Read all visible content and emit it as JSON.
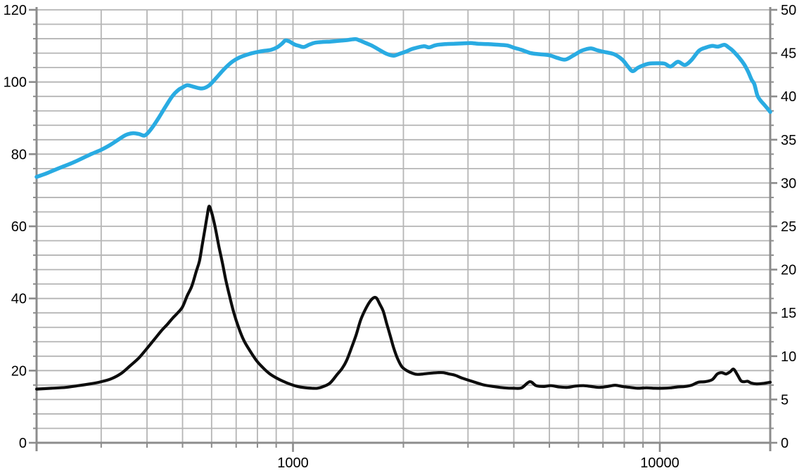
{
  "chart_data": {
    "type": "line",
    "title": "",
    "xlabel": "",
    "ylabel_left": "",
    "ylabel_right": "",
    "grid": true,
    "legend": "none",
    "x_axis": {
      "scale": "log",
      "min": 200,
      "max": 20000,
      "labeled_ticks": [
        1000,
        10000
      ],
      "gridline_freqs": [
        300,
        400,
        500,
        600,
        700,
        800,
        900,
        1000,
        2000,
        3000,
        4000,
        5000,
        6000,
        7000,
        8000,
        9000,
        10000
      ],
      "tick_freqs": [
        200,
        300,
        400,
        500,
        600,
        700,
        800,
        900,
        1000,
        2000,
        3000,
        4000,
        5000,
        6000,
        7000,
        8000,
        9000,
        10000,
        20000
      ]
    },
    "y_left": {
      "min": 0,
      "max": 120,
      "gridline_step": 4,
      "labeled_ticks": [
        0,
        20,
        40,
        60,
        80,
        100,
        120
      ]
    },
    "y_right": {
      "min": 0,
      "max": 50,
      "labeled_ticks": [
        0,
        5,
        10,
        15,
        20,
        25,
        30,
        35,
        40,
        45,
        50
      ]
    },
    "style": {
      "grid_color": "#b5b5b5",
      "frame_color": "#8c8c8c",
      "text_color": "#000000",
      "background": "#ffffff",
      "spl_color": "#29abe2",
      "impedance_color": "#0d0d0d"
    },
    "series": [
      {
        "name": "impedance",
        "axis": "right",
        "color": "#0d0d0d",
        "stroke_width": 4.2,
        "points": [
          [
            200,
            6.2
          ],
          [
            220,
            6.3
          ],
          [
            240,
            6.4
          ],
          [
            260,
            6.6
          ],
          [
            280,
            6.8
          ],
          [
            300,
            7.05
          ],
          [
            320,
            7.4
          ],
          [
            340,
            8.0
          ],
          [
            360,
            8.9
          ],
          [
            380,
            9.8
          ],
          [
            400,
            10.9
          ],
          [
            420,
            12.0
          ],
          [
            437,
            12.9
          ],
          [
            455,
            13.7
          ],
          [
            470,
            14.4
          ],
          [
            485,
            15.0
          ],
          [
            500,
            15.7
          ],
          [
            515,
            17.0
          ],
          [
            530,
            18.1
          ],
          [
            545,
            19.8
          ],
          [
            556,
            21.0
          ],
          [
            566,
            22.9
          ],
          [
            575,
            24.6
          ],
          [
            583,
            26.1
          ],
          [
            590,
            27.3
          ],
          [
            598,
            26.8
          ],
          [
            607,
            25.8
          ],
          [
            617,
            24.4
          ],
          [
            628,
            22.7
          ],
          [
            642,
            20.8
          ],
          [
            656,
            18.8
          ],
          [
            672,
            16.9
          ],
          [
            690,
            15.0
          ],
          [
            711,
            13.3
          ],
          [
            735,
            11.8
          ],
          [
            764,
            10.6
          ],
          [
            795,
            9.5
          ],
          [
            827,
            8.7
          ],
          [
            862,
            8.0
          ],
          [
            900,
            7.5
          ],
          [
            940,
            7.1
          ],
          [
            985,
            6.75
          ],
          [
            1030,
            6.5
          ],
          [
            1075,
            6.37
          ],
          [
            1125,
            6.3
          ],
          [
            1165,
            6.3
          ],
          [
            1210,
            6.5
          ],
          [
            1262,
            6.9
          ],
          [
            1320,
            7.9
          ],
          [
            1362,
            8.6
          ],
          [
            1400,
            9.5
          ],
          [
            1442,
            10.9
          ],
          [
            1485,
            12.4
          ],
          [
            1530,
            14.2
          ],
          [
            1575,
            15.4
          ],
          [
            1620,
            16.3
          ],
          [
            1660,
            16.75
          ],
          [
            1690,
            16.7
          ],
          [
            1725,
            16.0
          ],
          [
            1762,
            15.2
          ],
          [
            1800,
            13.8
          ],
          [
            1840,
            12.4
          ],
          [
            1880,
            11.0
          ],
          [
            1925,
            9.8
          ],
          [
            1980,
            8.8
          ],
          [
            2050,
            8.3
          ],
          [
            2125,
            8.0
          ],
          [
            2185,
            7.9
          ],
          [
            2265,
            7.95
          ],
          [
            2390,
            8.05
          ],
          [
            2480,
            8.1
          ],
          [
            2565,
            8.1
          ],
          [
            2665,
            7.95
          ],
          [
            2765,
            7.8
          ],
          [
            2900,
            7.45
          ],
          [
            3100,
            7.05
          ],
          [
            3300,
            6.7
          ],
          [
            3520,
            6.5
          ],
          [
            3760,
            6.35
          ],
          [
            4000,
            6.3
          ],
          [
            4200,
            6.35
          ],
          [
            4420,
            7.05
          ],
          [
            4600,
            6.6
          ],
          [
            4820,
            6.5
          ],
          [
            5050,
            6.6
          ],
          [
            5300,
            6.45
          ],
          [
            5600,
            6.4
          ],
          [
            5900,
            6.55
          ],
          [
            6200,
            6.6
          ],
          [
            6500,
            6.5
          ],
          [
            6850,
            6.4
          ],
          [
            7200,
            6.5
          ],
          [
            7550,
            6.65
          ],
          [
            7900,
            6.5
          ],
          [
            8300,
            6.4
          ],
          [
            8700,
            6.3
          ],
          [
            9200,
            6.35
          ],
          [
            9700,
            6.3
          ],
          [
            10200,
            6.3
          ],
          [
            10700,
            6.35
          ],
          [
            11200,
            6.45
          ],
          [
            11700,
            6.5
          ],
          [
            12200,
            6.65
          ],
          [
            12750,
            7.0
          ],
          [
            13300,
            7.05
          ],
          [
            13900,
            7.3
          ],
          [
            14350,
            7.95
          ],
          [
            14750,
            8.1
          ],
          [
            15150,
            7.95
          ],
          [
            15550,
            8.2
          ],
          [
            15900,
            8.5
          ],
          [
            16300,
            7.8
          ],
          [
            16650,
            7.15
          ],
          [
            17000,
            7.05
          ],
          [
            17350,
            7.1
          ],
          [
            17750,
            6.9
          ],
          [
            18300,
            6.8
          ],
          [
            19100,
            6.85
          ],
          [
            20000,
            7.0
          ]
        ]
      },
      {
        "name": "spl",
        "axis": "left",
        "color": "#29abe2",
        "stroke_width": 5.5,
        "points": [
          [
            200,
            73.7
          ],
          [
            212,
            74.6
          ],
          [
            225,
            75.7
          ],
          [
            238,
            76.7
          ],
          [
            252,
            77.7
          ],
          [
            267,
            78.9
          ],
          [
            283,
            80.1
          ],
          [
            300,
            81.2
          ],
          [
            318,
            82.6
          ],
          [
            335,
            84.1
          ],
          [
            350,
            85.3
          ],
          [
            365,
            85.8
          ],
          [
            380,
            85.6
          ],
          [
            395,
            85.2
          ],
          [
            412,
            87.2
          ],
          [
            430,
            90.0
          ],
          [
            450,
            93.3
          ],
          [
            470,
            96.2
          ],
          [
            487,
            97.8
          ],
          [
            500,
            98.5
          ],
          [
            515,
            99.1
          ],
          [
            535,
            98.7
          ],
          [
            565,
            98.2
          ],
          [
            590,
            99.0
          ],
          [
            615,
            100.9
          ],
          [
            640,
            102.9
          ],
          [
            660,
            104.3
          ],
          [
            685,
            105.7
          ],
          [
            715,
            106.8
          ],
          [
            750,
            107.6
          ],
          [
            790,
            108.2
          ],
          [
            830,
            108.6
          ],
          [
            870,
            108.9
          ],
          [
            905,
            109.6
          ],
          [
            935,
            110.7
          ],
          [
            953,
            111.5
          ],
          [
            975,
            111.3
          ],
          [
            1010,
            110.4
          ],
          [
            1040,
            110.0
          ],
          [
            1070,
            109.7
          ],
          [
            1110,
            110.4
          ],
          [
            1150,
            110.9
          ],
          [
            1200,
            111.1
          ],
          [
            1260,
            111.2
          ],
          [
            1330,
            111.4
          ],
          [
            1400,
            111.6
          ],
          [
            1480,
            111.9
          ],
          [
            1520,
            111.5
          ],
          [
            1570,
            110.9
          ],
          [
            1646,
            110.0
          ],
          [
            1720,
            108.9
          ],
          [
            1800,
            107.8
          ],
          [
            1880,
            107.3
          ],
          [
            1950,
            107.8
          ],
          [
            2030,
            108.4
          ],
          [
            2120,
            109.2
          ],
          [
            2270,
            109.9
          ],
          [
            2350,
            109.6
          ],
          [
            2450,
            110.2
          ],
          [
            2600,
            110.5
          ],
          [
            2750,
            110.6
          ],
          [
            2900,
            110.7
          ],
          [
            3050,
            110.8
          ],
          [
            3200,
            110.6
          ],
          [
            3400,
            110.5
          ],
          [
            3650,
            110.3
          ],
          [
            3850,
            110.1
          ],
          [
            4000,
            109.5
          ],
          [
            4200,
            108.9
          ],
          [
            4450,
            108.0
          ],
          [
            4700,
            107.7
          ],
          [
            5000,
            107.4
          ],
          [
            5250,
            106.7
          ],
          [
            5520,
            106.2
          ],
          [
            5800,
            107.3
          ],
          [
            6100,
            108.6
          ],
          [
            6300,
            109.1
          ],
          [
            6500,
            109.3
          ],
          [
            6750,
            108.8
          ],
          [
            7000,
            108.4
          ],
          [
            7500,
            107.7
          ],
          [
            7900,
            106.2
          ],
          [
            8200,
            104.2
          ],
          [
            8430,
            103.0
          ],
          [
            8700,
            103.9
          ],
          [
            9000,
            104.6
          ],
          [
            9350,
            105.1
          ],
          [
            9800,
            105.2
          ],
          [
            10300,
            105.1
          ],
          [
            10700,
            104.3
          ],
          [
            11200,
            105.6
          ],
          [
            11700,
            104.7
          ],
          [
            12200,
            106.1
          ],
          [
            12800,
            108.7
          ],
          [
            13400,
            109.6
          ],
          [
            13900,
            110.0
          ],
          [
            14400,
            109.8
          ],
          [
            15000,
            110.3
          ],
          [
            15400,
            109.6
          ],
          [
            15800,
            108.7
          ],
          [
            16500,
            106.6
          ],
          [
            17000,
            104.8
          ],
          [
            17400,
            102.9
          ],
          [
            17800,
            100.6
          ],
          [
            18100,
            99.4
          ],
          [
            18450,
            96.3
          ],
          [
            18800,
            94.9
          ],
          [
            19300,
            93.6
          ],
          [
            20000,
            91.7
          ]
        ]
      }
    ]
  }
}
